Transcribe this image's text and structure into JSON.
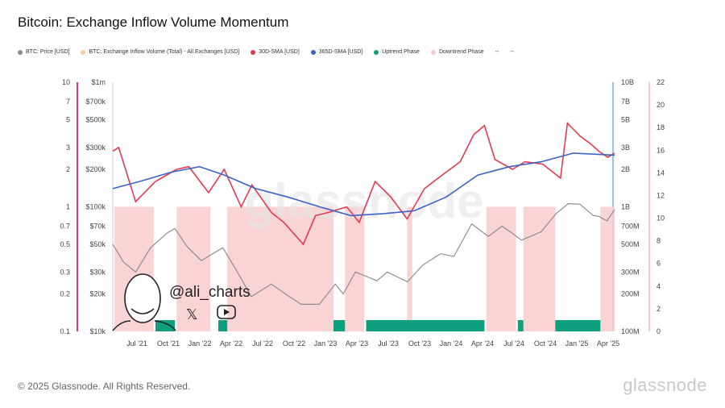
{
  "chart_data": {
    "type": "line",
    "title": "Bitcoin: Exchange Inflow Volume Momentum",
    "legend": [
      {
        "label": "BTC: Price [USD]",
        "color": "#8e8e8e"
      },
      {
        "label": "BTC: Exchange Inflow Volume (Total) - All Exchanges [USD]",
        "color": "#f7cfa3"
      },
      {
        "label": "30D-SMA [USD]",
        "color": "#e5384f"
      },
      {
        "label": "365D-SMA [USD]",
        "color": "#3a62c8"
      },
      {
        "label": "Uptrend Phase",
        "color": "#0e9f7e"
      },
      {
        "label": "Downtrend Phase",
        "color": "#f9cccc"
      },
      {
        "label": "--",
        "color": ""
      },
      {
        "label": "--",
        "color": ""
      }
    ],
    "x_ticks": [
      "Jul '21",
      "Oct '21",
      "Jan '22",
      "Apr '22",
      "Jul '22",
      "Oct '22",
      "Jan '23",
      "Apr '23",
      "Jul '23",
      "Oct '23",
      "Jan '24",
      "Apr '24",
      "Jul '24",
      "Oct '24",
      "Jan '25",
      "Apr '25"
    ],
    "x_range": [
      "2021-05-15",
      "2025-04-30"
    ],
    "axes": {
      "far_left": {
        "ticks": [
          "10",
          "7",
          "5",
          "3",
          "2",
          "1",
          "0.7",
          "0.5",
          "0.3",
          "0.2",
          "0.1"
        ],
        "values": [
          10,
          7,
          5,
          3,
          2,
          1,
          0.7,
          0.5,
          0.3,
          0.2,
          0.1
        ],
        "scale": "log"
      },
      "left": {
        "ticks": [
          "$1m",
          "$700k",
          "$500k",
          "$300k",
          "$200k",
          "$100k",
          "$70k",
          "$50k",
          "$30k",
          "$20k",
          "$10k"
        ],
        "values": [
          1000000,
          700000,
          500000,
          300000,
          200000,
          100000,
          70000,
          50000,
          30000,
          20000,
          10000
        ],
        "scale": "log"
      },
      "right": {
        "ticks": [
          "10B",
          "7B",
          "5B",
          "3B",
          "2B",
          "1B",
          "700M",
          "500M",
          "300M",
          "200M",
          "100M"
        ],
        "values": [
          10000000000,
          7000000000,
          5000000000,
          3000000000,
          2000000000,
          1000000000,
          700000000,
          500000000,
          300000000,
          200000000,
          100000000
        ],
        "scale": "log"
      },
      "far_right": {
        "ticks": [
          "22",
          "20",
          "18",
          "16",
          "14",
          "12",
          "10",
          "8",
          "6",
          "4",
          "2",
          "0"
        ],
        "values": [
          22,
          20,
          18,
          16,
          14,
          12,
          10,
          8,
          6,
          4,
          2,
          0
        ],
        "scale": "linear"
      }
    },
    "series": [
      {
        "name": "BTC: Price [USD]",
        "x": [
          "2021-05-15",
          "2021-06-15",
          "2021-07-20",
          "2021-09-01",
          "2021-10-20",
          "2021-11-10",
          "2021-12-15",
          "2022-01-25",
          "2022-03-28",
          "2022-05-12",
          "2022-06-18",
          "2022-08-15",
          "2022-09-30",
          "2022-11-09",
          "2022-12-31",
          "2023-02-15",
          "2023-03-10",
          "2023-04-14",
          "2023-06-15",
          "2023-07-15",
          "2023-09-11",
          "2023-10-25",
          "2023-12-15",
          "2024-01-23",
          "2024-03-14",
          "2024-05-01",
          "2024-06-10",
          "2024-08-05",
          "2024-09-30",
          "2024-11-12",
          "2024-12-17",
          "2025-01-20",
          "2025-02-28",
          "2025-03-15",
          "2025-04-08",
          "2025-04-30"
        ],
        "values": [
          50000,
          36000,
          30000,
          47000,
          62000,
          67000,
          48000,
          37000,
          47000,
          29000,
          19000,
          24000,
          19500,
          16500,
          16500,
          24000,
          20000,
          30000,
          25500,
          30000,
          25000,
          34000,
          42000,
          40000,
          73000,
          58000,
          70000,
          54000,
          63000,
          88000,
          106000,
          105000,
          85000,
          84000,
          77000,
          95000
        ]
      },
      {
        "name": "30D-SMA [USD]",
        "x": [
          "2021-05-15",
          "2021-06-01",
          "2021-07-20",
          "2021-09-15",
          "2021-11-15",
          "2021-12-20",
          "2022-02-15",
          "2022-04-01",
          "2022-05-20",
          "2022-06-20",
          "2022-08-15",
          "2022-09-20",
          "2022-11-15",
          "2022-12-20",
          "2023-01-25",
          "2023-03-20",
          "2023-04-25",
          "2023-06-10",
          "2023-07-25",
          "2023-09-10",
          "2023-10-30",
          "2023-12-20",
          "2024-02-10",
          "2024-03-20",
          "2024-04-20",
          "2024-05-20",
          "2024-07-10",
          "2024-08-15",
          "2024-10-05",
          "2024-11-25",
          "2024-12-15",
          "2025-01-20",
          "2025-02-20",
          "2025-03-15",
          "2025-04-10",
          "2025-04-30"
        ],
        "values": [
          2800000000,
          3000000000,
          1100000000,
          1600000000,
          2000000000,
          2100000000,
          1300000000,
          2000000000,
          1000000000,
          1500000000,
          900000000,
          750000000,
          500000000,
          850000000,
          900000000,
          1000000000,
          750000000,
          1600000000,
          1200000000,
          800000000,
          1400000000,
          1800000000,
          2300000000,
          3800000000,
          4500000000,
          2400000000,
          2000000000,
          2300000000,
          2200000000,
          1700000000,
          4700000000,
          3700000000,
          3200000000,
          2800000000,
          2500000000,
          2700000000
        ]
      },
      {
        "name": "365D-SMA [USD]",
        "x": [
          "2021-05-15",
          "2021-08-01",
          "2021-11-01",
          "2022-01-20",
          "2022-04-01",
          "2022-07-01",
          "2022-10-01",
          "2023-01-01",
          "2023-04-01",
          "2023-07-01",
          "2023-10-01",
          "2024-01-01",
          "2024-04-01",
          "2024-07-01",
          "2024-10-01",
          "2025-01-01",
          "2025-04-30"
        ],
        "values": [
          1400000000,
          1600000000,
          1900000000,
          2100000000,
          1800000000,
          1400000000,
          1200000000,
          1000000000,
          850000000,
          880000000,
          930000000,
          1200000000,
          1800000000,
          2100000000,
          2300000000,
          2700000000,
          2600000000
        ]
      }
    ],
    "downtrend_phases": [
      [
        "2021-05-20",
        "2021-09-10"
      ],
      [
        "2021-11-15",
        "2022-02-20"
      ],
      [
        "2022-04-10",
        "2023-02-10"
      ],
      [
        "2023-03-15",
        "2023-05-10"
      ],
      [
        "2023-09-10",
        "2023-09-25"
      ],
      [
        "2024-04-25",
        "2024-07-20"
      ],
      [
        "2024-08-10",
        "2024-11-10"
      ],
      [
        "2025-03-20",
        "2025-04-30"
      ]
    ],
    "uptrend_phases": [
      [
        "2021-09-15",
        "2021-11-10"
      ],
      [
        "2022-03-15",
        "2022-04-10"
      ],
      [
        "2023-02-10",
        "2023-03-15"
      ],
      [
        "2023-05-15",
        "2024-04-20"
      ],
      [
        "2024-07-25",
        "2024-08-10"
      ],
      [
        "2024-11-10",
        "2025-03-20"
      ]
    ]
  },
  "watermark": {
    "text": "glassnode",
    "handle": "@ali_charts"
  },
  "footer": {
    "copyright": "© 2025 Glassnode. All Rights Reserved.",
    "brand": "glassnode"
  },
  "icons": {
    "social": [
      "x-icon",
      "youtube-icon"
    ],
    "avatar": "avatar-cartoon"
  }
}
